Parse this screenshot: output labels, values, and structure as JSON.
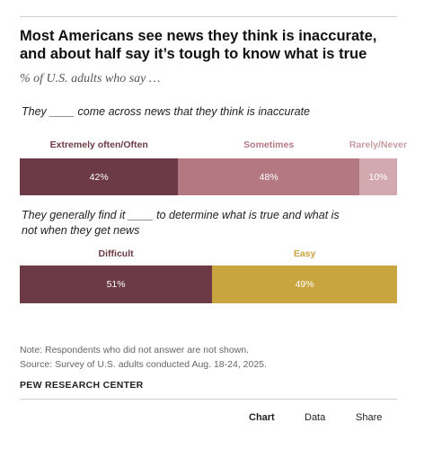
{
  "title": "Most Americans see news they think is inaccurate, and about half say it’s tough to know what is true",
  "subtitle": "% of U.S. adults who say …",
  "chart_data": [
    {
      "type": "bar",
      "orientation": "horizontal-stacked",
      "question": "They ____ come across news that they think is inaccurate",
      "categories": [
        "Extremely often/Often",
        "Sometimes",
        "Rarely/Never"
      ],
      "values": [
        42,
        48,
        10
      ],
      "value_labels": [
        "42%",
        "48%",
        "10%"
      ],
      "colors": [
        "#6b3a46",
        "#b47883",
        "#d2a9ae"
      ],
      "label_colors": [
        "#6b3a46",
        "#b47883",
        "#c79ba1"
      ]
    },
    {
      "type": "bar",
      "orientation": "horizontal-stacked",
      "question": "They generally find it ____ to determine what is true and what is not when they get news",
      "categories": [
        "Difficult",
        "Easy"
      ],
      "values": [
        51,
        49
      ],
      "value_labels": [
        "51%",
        "49%"
      ],
      "colors": [
        "#6b3a46",
        "#c9a53f"
      ],
      "label_colors": [
        "#6b3a46",
        "#c9a53f"
      ]
    }
  ],
  "note": "Note: Respondents who did not answer are not shown.",
  "source": "Source: Survey of U.S. adults conducted Aug. 18-24, 2025.",
  "brand": "PEW RESEARCH CENTER",
  "footer": {
    "chart": "Chart",
    "data": "Data",
    "share": "Share"
  }
}
